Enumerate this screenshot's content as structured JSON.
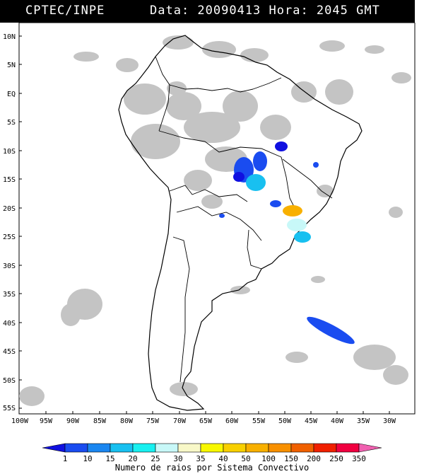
{
  "header": {
    "left": "CPTEC/INPE",
    "right": "Data: 20090413 Hora: 2045 GMT"
  },
  "lat_labels": [
    "10N",
    "5N",
    "EQ",
    "5S",
    "10S",
    "15S",
    "20S",
    "25S",
    "30S",
    "35S",
    "40S",
    "45S",
    "50S",
    "55S"
  ],
  "lon_labels": [
    "100W",
    "95W",
    "90W",
    "85W",
    "80W",
    "75W",
    "70W",
    "65W",
    "60W",
    "55W",
    "50W",
    "45W",
    "40W",
    "35W",
    "30W"
  ],
  "legend": {
    "ticks": [
      "1",
      "10",
      "15",
      "20",
      "25",
      "30",
      "35",
      "40",
      "50",
      "100",
      "150",
      "200",
      "250",
      "350"
    ],
    "caption": "Numero de raios por Sistema Convectivo",
    "colors": [
      "#1010e0",
      "#1a4cf0",
      "#1a86f0",
      "#18c0f0",
      "#18f0f0",
      "#c8f8f8",
      "#f8f8c8",
      "#f8f800",
      "#f8d000",
      "#f8b000",
      "#f89000",
      "#f06000",
      "#f02000",
      "#f00040",
      "#f060b0"
    ]
  }
}
